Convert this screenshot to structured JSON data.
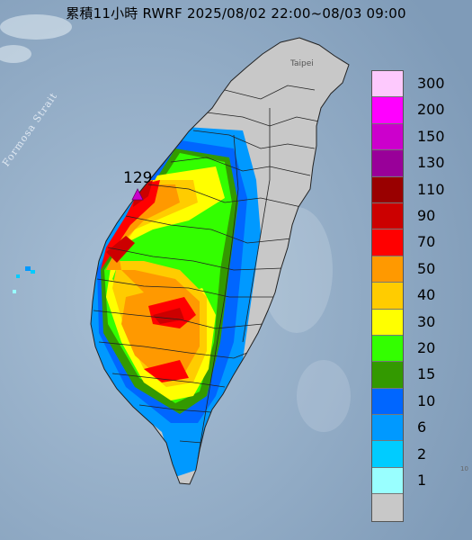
{
  "title": "累積11小時 RWRF 2025/08/02 22:00~08/03 09:00",
  "strait_label": "Formosa Strait",
  "city_label": "Taipei",
  "max_value": "129",
  "corner_mark": "10",
  "legend": [
    {
      "label": "300",
      "color": "#fdc9fd"
    },
    {
      "label": "200",
      "color": "#ff00ff"
    },
    {
      "label": "150",
      "color": "#cc00cc"
    },
    {
      "label": "130",
      "color": "#990099"
    },
    {
      "label": "110",
      "color": "#990000"
    },
    {
      "label": "90",
      "color": "#cc0000"
    },
    {
      "label": "70",
      "color": "#ff0000"
    },
    {
      "label": "50",
      "color": "#ff9900"
    },
    {
      "label": "40",
      "color": "#ffcc00"
    },
    {
      "label": "30",
      "color": "#ffff00"
    },
    {
      "label": "20",
      "color": "#33ff00"
    },
    {
      "label": "15",
      "color": "#339900"
    },
    {
      "label": "10",
      "color": "#0066ff"
    },
    {
      "label": "6",
      "color": "#0099ff"
    },
    {
      "label": "2",
      "color": "#00ccff"
    },
    {
      "label": "1",
      "color": "#99ffff"
    },
    {
      "label": "",
      "color": "#c8c8c8"
    }
  ],
  "colors": {
    "sea": "#8fa9c2",
    "no_rain_land": "#c8c8c8",
    "boundary": "#222222",
    "marker": "#cc00cc"
  }
}
